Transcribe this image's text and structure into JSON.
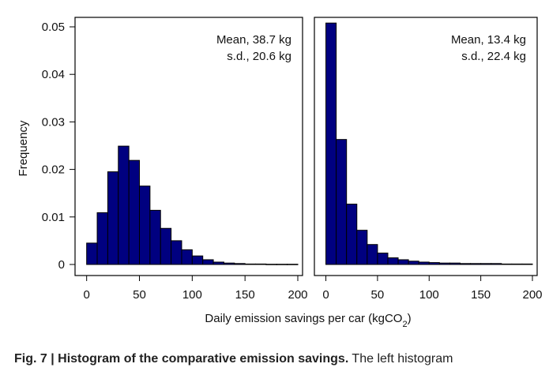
{
  "chart_data": [
    {
      "type": "bar",
      "bin_width": 10,
      "x": [
        0,
        10,
        20,
        30,
        40,
        50,
        60,
        70,
        80,
        90,
        100,
        110,
        120,
        130,
        140,
        150,
        160,
        170,
        180,
        190
      ],
      "values": [
        0.0045,
        0.0109,
        0.0195,
        0.0249,
        0.0219,
        0.0165,
        0.0114,
        0.0076,
        0.005,
        0.0031,
        0.0018,
        0.001,
        0.0005,
        0.0003,
        0.0002,
        0.0001,
        0.0001,
        5e-05,
        5e-05,
        5e-05
      ],
      "xlim": [
        -5,
        200
      ],
      "ylim": [
        0,
        0.05
      ],
      "xticks": [
        "0",
        "50",
        "100",
        "150",
        "200"
      ],
      "yticks": [
        "0",
        "0.01",
        "0.02",
        "0.03",
        "0.04",
        "0.05"
      ],
      "ylabel": "Frequency",
      "annotations": [
        "Mean, 38.7 kg",
        "s.d., 20.6 kg"
      ],
      "color": "#000080"
    },
    {
      "type": "bar",
      "bin_width": 10,
      "x": [
        0,
        10,
        20,
        30,
        40,
        50,
        60,
        70,
        80,
        90,
        100,
        110,
        120,
        130,
        140,
        150,
        160,
        170,
        180,
        190
      ],
      "values": [
        0.0508,
        0.0263,
        0.0127,
        0.0072,
        0.0042,
        0.0024,
        0.0014,
        0.001,
        0.0007,
        0.0005,
        0.0004,
        0.0003,
        0.0003,
        0.0002,
        0.0002,
        0.0002,
        0.0002,
        0.0001,
        0.0001,
        0.0001
      ],
      "xlim": [
        -5,
        200
      ],
      "ylim": [
        0,
        0.05
      ],
      "xticks": [
        "0",
        "50",
        "100",
        "150",
        "200"
      ],
      "annotations": [
        "Mean, 13.4 kg",
        "s.d., 22.4 kg"
      ],
      "color": "#000080"
    }
  ],
  "shared": {
    "xlabel_main": "Daily emission savings per car (kgCO",
    "xlabel_sub": "2",
    "xlabel_close": ")"
  },
  "caption": {
    "bold": "Fig. 7 | Histogram of the comparative emission savings.",
    "rest": " The left histogram"
  }
}
